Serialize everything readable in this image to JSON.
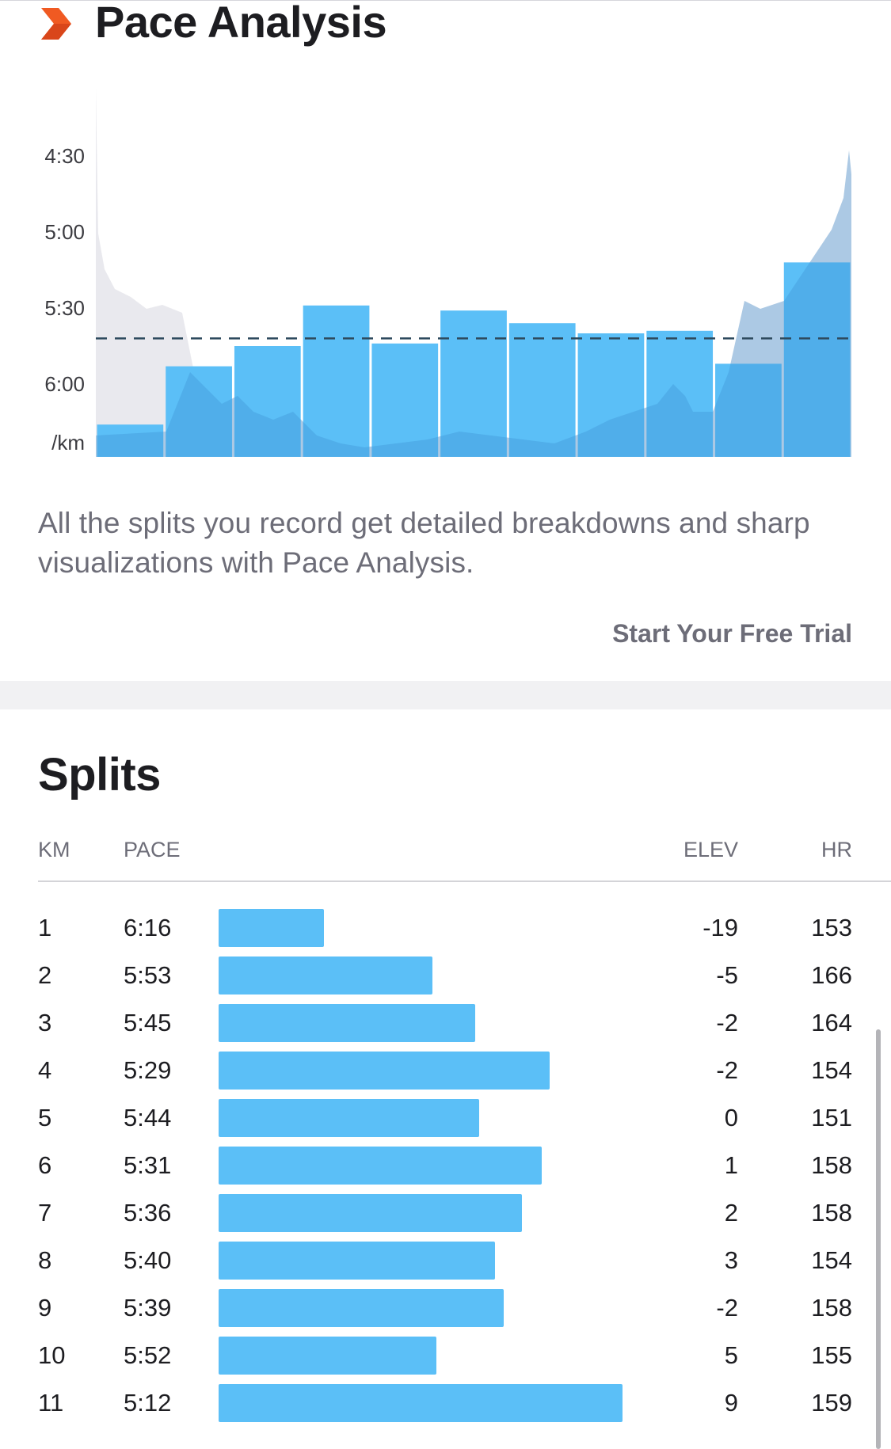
{
  "header": {
    "title": "Pace Analysis",
    "icon": "chevron-right-icon",
    "icon_color": "#f05a22"
  },
  "chart_data": {
    "type": "bar",
    "title": "",
    "ylabel": "/km",
    "y_ticks": [
      "4:30",
      "5:00",
      "5:30",
      "6:00"
    ],
    "y_tick_seconds": [
      270,
      300,
      330,
      360
    ],
    "y_range_seconds": [
      250,
      390
    ],
    "y_inverted": true,
    "categories": [
      "1",
      "2",
      "3",
      "4",
      "5",
      "6",
      "7",
      "8",
      "9",
      "10",
      "11"
    ],
    "values": [
      "6:16",
      "5:53",
      "5:45",
      "5:29",
      "5:44",
      "5:31",
      "5:36",
      "5:40",
      "5:39",
      "5:52",
      "5:12"
    ],
    "values_seconds": [
      376,
      353,
      345,
      329,
      344,
      331,
      336,
      340,
      339,
      352,
      312
    ],
    "average_line_seconds": 342,
    "bar_color": "#5bbff7",
    "background_area_color": "#e9e9ee"
  },
  "description": "All the splits you record get detailed breakdowns and sharp visualizations with Pace Analysis.",
  "cta_label": "Start Your Free Trial",
  "splits": {
    "title": "Splits",
    "columns": {
      "km": "KM",
      "pace": "PACE",
      "elev": "ELEV",
      "hr": "HR"
    },
    "rows": [
      {
        "km": "1",
        "pace": "6:16",
        "elev": "-19",
        "hr": "153",
        "bar_fraction": 0.26
      },
      {
        "km": "2",
        "pace": "5:53",
        "elev": "-5",
        "hr": "166",
        "bar_fraction": 0.53
      },
      {
        "km": "3",
        "pace": "5:45",
        "elev": "-2",
        "hr": "164",
        "bar_fraction": 0.635
      },
      {
        "km": "4",
        "pace": "5:29",
        "elev": "-2",
        "hr": "154",
        "bar_fraction": 0.82
      },
      {
        "km": "5",
        "pace": "5:44",
        "elev": "0",
        "hr": "151",
        "bar_fraction": 0.645
      },
      {
        "km": "6",
        "pace": "5:31",
        "elev": "1",
        "hr": "158",
        "bar_fraction": 0.8
      },
      {
        "km": "7",
        "pace": "5:36",
        "elev": "2",
        "hr": "158",
        "bar_fraction": 0.75
      },
      {
        "km": "8",
        "pace": "5:40",
        "elev": "3",
        "hr": "154",
        "bar_fraction": 0.685
      },
      {
        "km": "9",
        "pace": "5:39",
        "elev": "-2",
        "hr": "158",
        "bar_fraction": 0.705
      },
      {
        "km": "10",
        "pace": "5:52",
        "elev": "5",
        "hr": "155",
        "bar_fraction": 0.54
      },
      {
        "km": "11",
        "pace": "5:12",
        "elev": "9",
        "hr": "159",
        "bar_fraction": 1.0
      }
    ]
  }
}
